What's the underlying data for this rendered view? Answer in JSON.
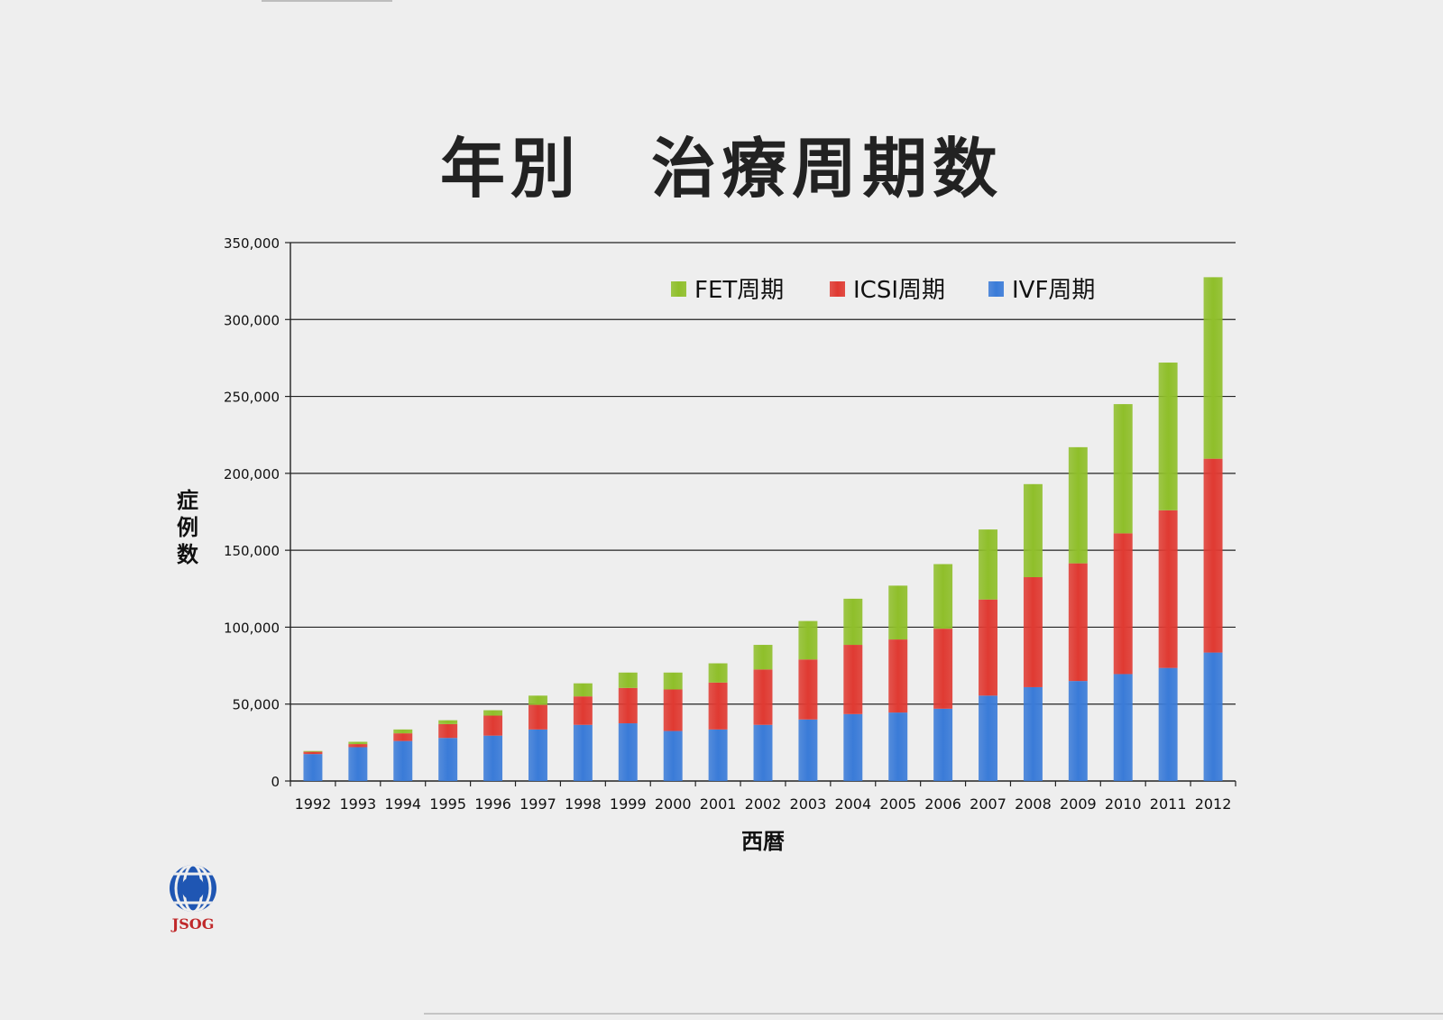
{
  "title": "年別　治療周期数",
  "chart_data": {
    "type": "bar",
    "stacked": true,
    "xlabel": "西暦",
    "ylabel": "症例数",
    "ylim": [
      0,
      350000
    ],
    "yticks": [
      0,
      50000,
      100000,
      150000,
      200000,
      250000,
      300000,
      350000
    ],
    "ytick_labels": [
      "0",
      "50,000",
      "100,000",
      "150,000",
      "200,000",
      "250,000",
      "300,000",
      "350,000"
    ],
    "grid": true,
    "legend_position": "top-right",
    "categories": [
      "1992",
      "1993",
      "1994",
      "1995",
      "1996",
      "1997",
      "1998",
      "1999",
      "2000",
      "2001",
      "2002",
      "2003",
      "2004",
      "2005",
      "2006",
      "2007",
      "2008",
      "2009",
      "2010",
      "2011",
      "2012"
    ],
    "series": [
      {
        "name": "IVF周期",
        "color": "#3a7bd8",
        "values": [
          17500,
          22000,
          26000,
          28000,
          29500,
          33500,
          36500,
          37500,
          32500,
          33500,
          36500,
          40000,
          43500,
          44500,
          47000,
          55500,
          61000,
          65000,
          69500,
          73500,
          83500
        ]
      },
      {
        "name": "ICSI周期",
        "color": "#e03a32",
        "values": [
          1500,
          2000,
          5000,
          9000,
          13000,
          16000,
          18500,
          23000,
          27000,
          30500,
          36000,
          39000,
          45000,
          47500,
          52000,
          62500,
          71500,
          76500,
          91500,
          102500,
          126000
        ]
      },
      {
        "name": "FET周期",
        "color": "#8fbf2a",
        "values": [
          500,
          1500,
          2500,
          2500,
          3500,
          6000,
          8500,
          10000,
          11000,
          12500,
          16000,
          25000,
          30000,
          35000,
          42000,
          45500,
          60500,
          75500,
          84000,
          96000,
          118000
        ]
      }
    ],
    "legend_order": [
      "FET周期",
      "ICSI周期",
      "IVF周期"
    ]
  },
  "logo": {
    "text": "JSOG"
  }
}
